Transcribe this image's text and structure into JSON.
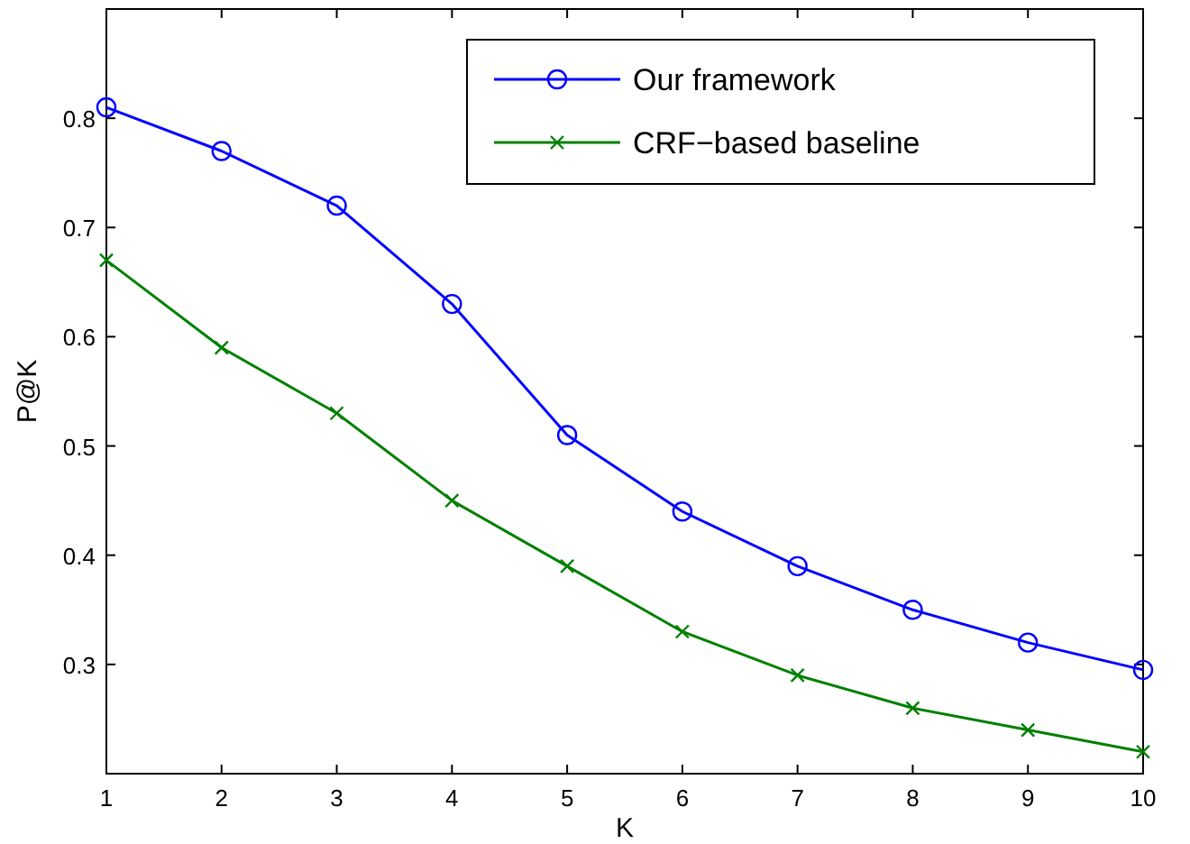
{
  "chart_data": {
    "type": "line",
    "xlabel": "K",
    "ylabel": "P@K",
    "x": [
      1,
      2,
      3,
      4,
      5,
      6,
      7,
      8,
      9,
      10
    ],
    "xlim": [
      1,
      10
    ],
    "xticks": [
      1,
      2,
      3,
      4,
      5,
      6,
      7,
      8,
      9,
      10
    ],
    "ylim": [
      0.2,
      0.9
    ],
    "yticks": [
      0.3,
      0.4,
      0.5,
      0.6,
      0.7,
      0.8
    ],
    "legend": "top right",
    "grid": false,
    "series": [
      {
        "name": "Our framework",
        "color": "#0000ff",
        "marker": "circle",
        "values": [
          0.81,
          0.77,
          0.72,
          0.63,
          0.51,
          0.44,
          0.39,
          0.35,
          0.32,
          0.295
        ]
      },
      {
        "name": "CRF−based baseline",
        "color": "#008000",
        "marker": "cross",
        "values": [
          0.67,
          0.59,
          0.53,
          0.45,
          0.39,
          0.33,
          0.29,
          0.26,
          0.24,
          0.22
        ]
      }
    ]
  }
}
